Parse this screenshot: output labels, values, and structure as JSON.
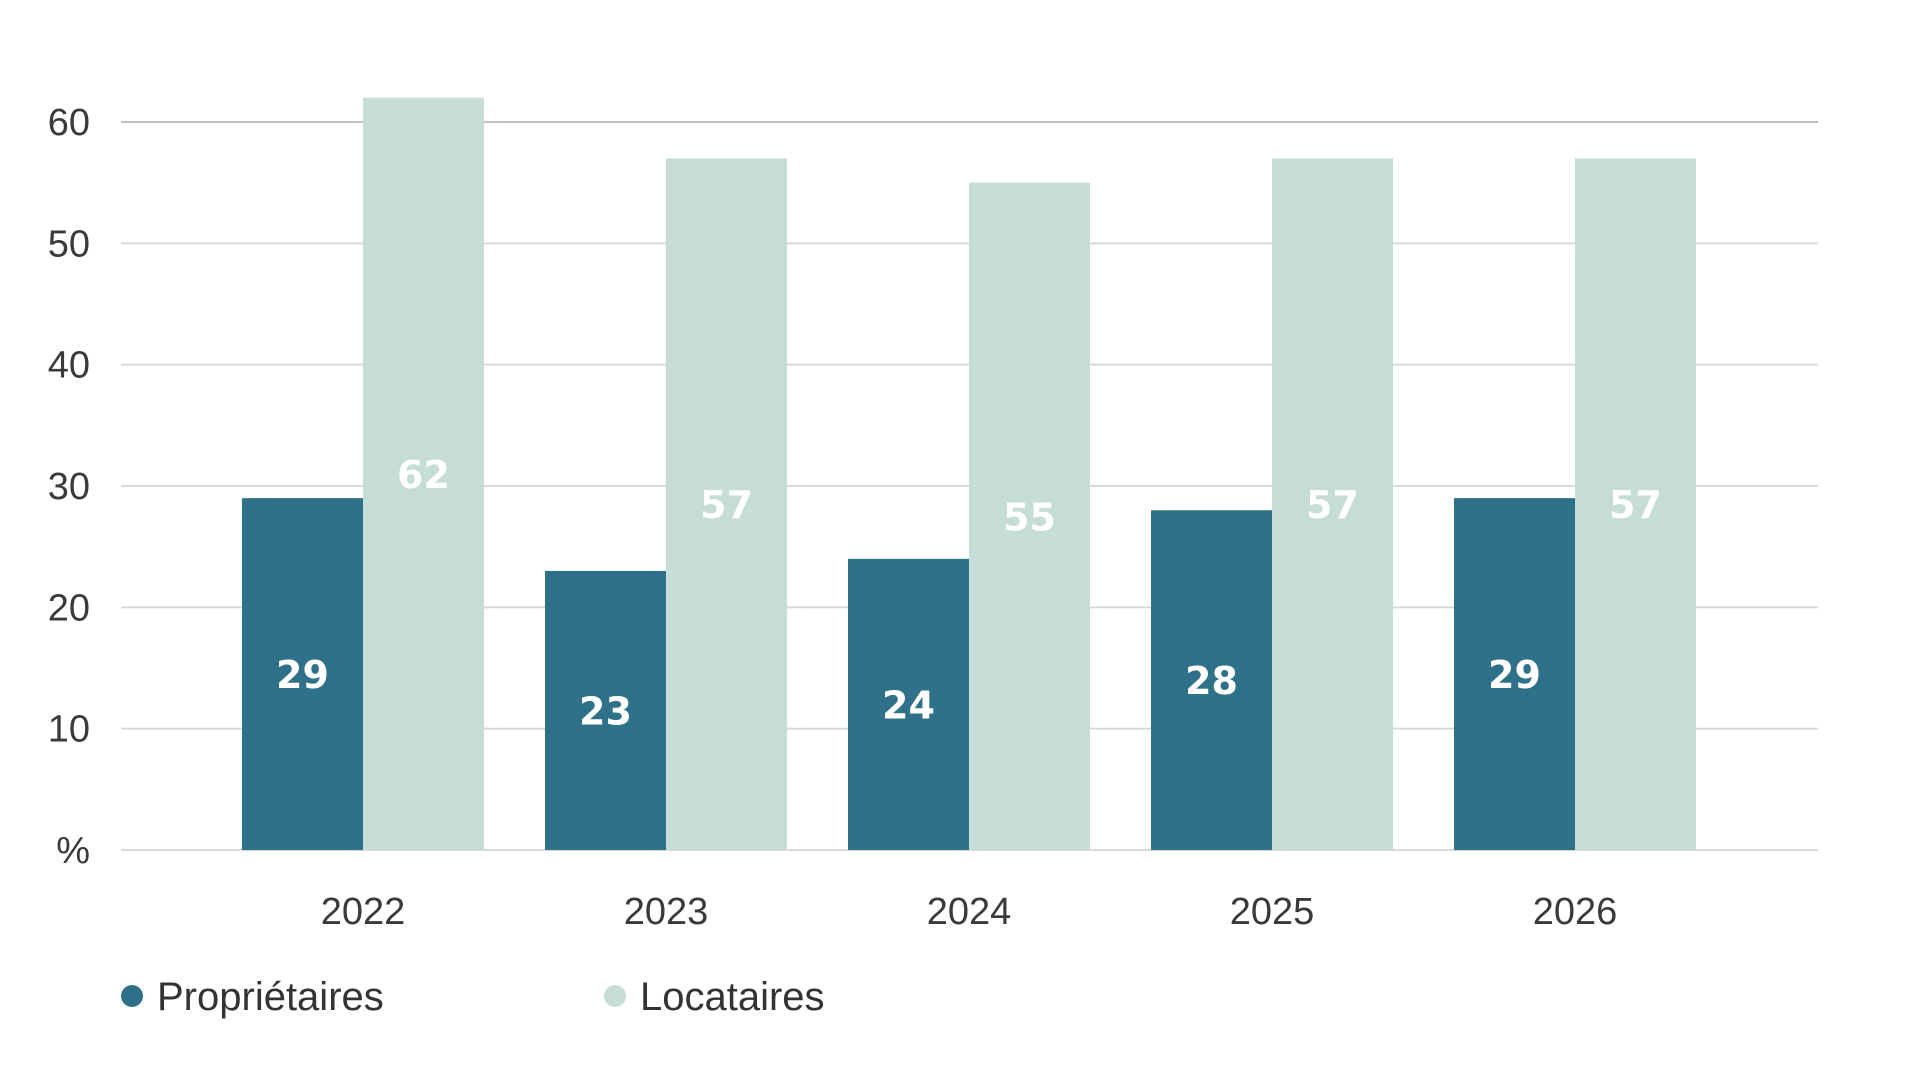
{
  "chart_data": {
    "type": "bar",
    "categories": [
      "2022",
      "2023",
      "2024",
      "2025",
      "2026"
    ],
    "series": [
      {
        "name": "Propriétaires",
        "values": [
          29,
          23,
          24,
          28,
          29
        ],
        "color": "#2f7189"
      },
      {
        "name": "Locataires",
        "values": [
          62,
          57,
          55,
          57,
          57
        ],
        "color": "#c5ddd6"
      }
    ],
    "ylim": [
      0,
      60
    ],
    "yticks": [
      "%",
      "10",
      "20",
      "30",
      "40",
      "50",
      "60"
    ],
    "ylabel": "%",
    "grid": true,
    "legend_position": "bottom-left",
    "data_labels": true
  }
}
